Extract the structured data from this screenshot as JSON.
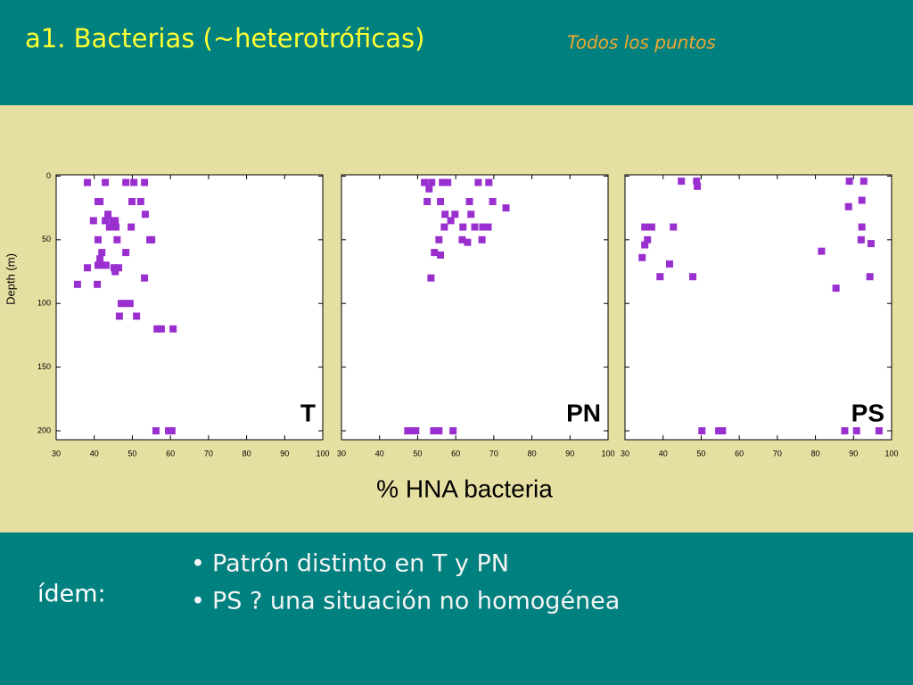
{
  "header": {
    "title": "a1. Bacterias (~heterotróficas)",
    "subtitle": "Todos los puntos"
  },
  "ylabel": "Depth (m)",
  "xlabel": "% HNA bacteria",
  "footer": {
    "label": "ídem:",
    "bullets": [
      "Patrón distinto en T y PN",
      "PS ? una situación no homogénea"
    ]
  },
  "chart_data": [
    {
      "type": "scatter",
      "title": "T",
      "color": "#9a2fd0",
      "xlim": [
        30,
        100
      ],
      "ylim": [
        -1,
        207
      ],
      "y_inverted": true,
      "xticks": [
        30,
        40,
        50,
        60,
        70,
        80,
        90,
        100
      ],
      "yticks": [
        0,
        50,
        100,
        150,
        200
      ],
      "ytick_labels": true,
      "x": [
        38.2,
        42.9,
        48.3,
        50.4,
        53.2,
        41,
        41.5,
        49.9,
        52.2,
        53.4,
        43.6,
        39.8,
        42.9,
        44.8,
        45.5,
        44,
        45.7,
        49.7,
        45,
        46,
        41,
        54.6,
        55.1,
        42,
        48.3,
        41.5,
        41,
        38.2,
        43.1,
        42.2,
        45.2,
        46.4,
        45.5,
        53.2,
        35.6,
        40.8,
        47.1,
        48.3,
        49.4,
        46.6,
        51.1,
        56.5,
        57.6,
        60.7,
        56.2,
        59.5,
        60.4
      ],
      "y": [
        5,
        5,
        5,
        5,
        5,
        20,
        20,
        20,
        20,
        30,
        30,
        35,
        35,
        35,
        35,
        40,
        40,
        40,
        40,
        50,
        50,
        50,
        50,
        60,
        60,
        65,
        70,
        72,
        70,
        70,
        72,
        72,
        75,
        80,
        85,
        85,
        100,
        100,
        100,
        110,
        110,
        120,
        120,
        120,
        200,
        200,
        200
      ]
    },
    {
      "type": "scatter",
      "title": "PN",
      "color": "#9a2fd0",
      "xlim": [
        30,
        100
      ],
      "ylim": [
        -1,
        207
      ],
      "y_inverted": true,
      "xticks": [
        30,
        40,
        50,
        60,
        70,
        80,
        90,
        100
      ],
      "yticks": [
        0,
        50,
        100,
        150,
        200
      ],
      "ytick_labels": false,
      "x": [
        51.8,
        53.7,
        56.5,
        57.9,
        65.9,
        68.7,
        53,
        52.5,
        56,
        63.6,
        69.7,
        73.2,
        57.2,
        59.8,
        64,
        58.7,
        57,
        61.9,
        65,
        67.1,
        68.5,
        55.6,
        61.7,
        63.1,
        66.9,
        54.4,
        56,
        53.5,
        48.1,
        49.5,
        54.2,
        55.6,
        59.3,
        47.4
      ],
      "y": [
        5,
        5,
        5,
        5,
        5,
        5,
        10,
        20,
        20,
        20,
        20,
        25,
        30,
        30,
        30,
        35,
        40,
        40,
        40,
        40,
        40,
        50,
        50,
        52,
        50,
        60,
        62,
        80,
        200,
        200,
        200,
        200,
        200,
        200
      ]
    },
    {
      "type": "scatter",
      "title": "PS",
      "color": "#9a2fd0",
      "xlim": [
        30,
        100
      ],
      "ylim": [
        -1,
        207
      ],
      "y_inverted": true,
      "xticks": [
        30,
        40,
        50,
        60,
        70,
        80,
        90,
        100
      ],
      "yticks": [
        0,
        50,
        100,
        150,
        200
      ],
      "ytick_labels": false,
      "x": [
        44.8,
        48.8,
        49,
        88.9,
        92.7,
        88.7,
        92.2,
        35.2,
        37,
        42.7,
        35.9,
        92.2,
        92,
        94.6,
        35.2,
        34.5,
        81.6,
        41.7,
        39.2,
        47.8,
        94.3,
        85.4,
        50.2,
        54.6,
        55.6,
        87.7,
        90.8,
        96.7
      ],
      "y": [
        4,
        4,
        8,
        4,
        4,
        24,
        19,
        40,
        40,
        40,
        50,
        40,
        50,
        53,
        54,
        64,
        59,
        69,
        79,
        79,
        79,
        88,
        200,
        200,
        200,
        200,
        200,
        200
      ]
    }
  ]
}
